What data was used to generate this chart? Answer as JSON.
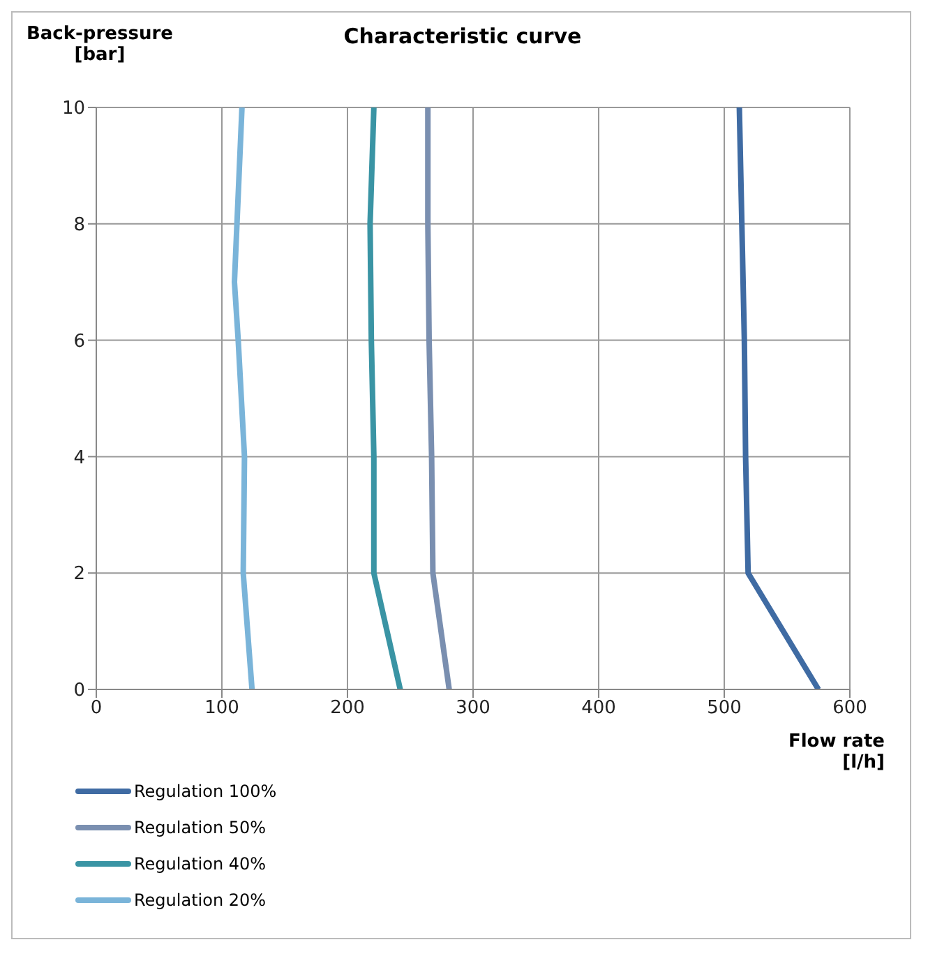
{
  "chart_data": {
    "type": "line",
    "title": "Characteristic curve",
    "xlabel": "Flow rate\n[l/h]",
    "ylabel": "Back-pressure\n[bar]",
    "xlim": [
      0,
      600
    ],
    "xticks": [
      0,
      100,
      200,
      300,
      400,
      500,
      600
    ],
    "ylim": [
      0,
      10
    ],
    "yticks": [
      0,
      2,
      4,
      6,
      8,
      10
    ],
    "grid": true,
    "legend": "bottom",
    "marker": "none",
    "line_style": "solid",
    "series": [
      {
        "name": "Regulation 100%",
        "color": "#3f6ba3",
        "x": [
          575,
          519,
          517,
          516,
          514,
          512
        ],
        "values": [
          0,
          2,
          4,
          6,
          8,
          10
        ]
      },
      {
        "name": "Regulation 50%",
        "color": "#7a8fb0",
        "x": [
          281,
          268,
          267,
          265,
          264,
          264
        ],
        "values": [
          0,
          2,
          4,
          6,
          8,
          10
        ]
      },
      {
        "name": "Regulation 40%",
        "color": "#3a94a4",
        "x": [
          242,
          221,
          221,
          219,
          218,
          221
        ],
        "values": [
          0,
          2,
          4,
          6,
          8,
          10
        ]
      },
      {
        "name": "Regulation 20%",
        "color": "#7ab4d9",
        "x": [
          124,
          117,
          118,
          113,
          110,
          112,
          116
        ],
        "values": [
          0,
          2,
          4,
          6,
          7,
          8,
          10
        ]
      }
    ]
  }
}
